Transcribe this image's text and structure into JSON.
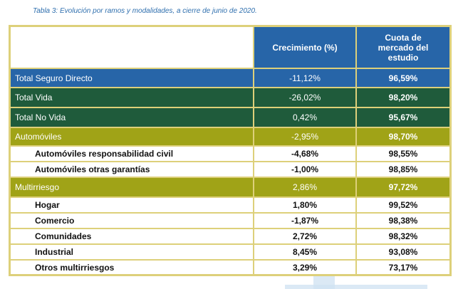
{
  "caption": "Tabla 3: Evolución por ramos y modalidades,  a cierre de junio de 2020.",
  "header": {
    "col2": "Crecimiento (%)",
    "col3": "Cuota de mercado del estudio"
  },
  "rows": [
    {
      "label": "Total Seguro Directo",
      "growth": "-11,12%",
      "share": "96,59%"
    },
    {
      "label": "Total Vida",
      "growth": "-26,02%",
      "share": "98,20%"
    },
    {
      "label": "Total No Vida",
      "growth": "0,42%",
      "share": "95,67%"
    },
    {
      "label": "Automóviles",
      "growth": "-2,95%",
      "share": "98,70%"
    },
    {
      "label": "Automóviles responsabilidad civil",
      "growth": "-4,68%",
      "share": "98,55%"
    },
    {
      "label": "Automóviles otras garantías",
      "growth": "-1,00%",
      "share": "98,85%"
    },
    {
      "label": "Multirriesgo",
      "growth": "2,86%",
      "share": "97,72%"
    },
    {
      "label": "Hogar",
      "growth": "1,80%",
      "share": "99,52%"
    },
    {
      "label": "Comercio",
      "growth": "-1,87%",
      "share": "98,38%"
    },
    {
      "label": "Comunidades",
      "growth": "2,72%",
      "share": "98,32%"
    },
    {
      "label": "Industrial",
      "growth": "8,45%",
      "share": "93,08%"
    },
    {
      "label": "Otros multirriesgos",
      "growth": "3,29%",
      "share": "73,17%"
    }
  ],
  "colors": {
    "blue": "#2765a8",
    "green": "#1f5b3b",
    "olive": "#a0a317",
    "border": "#ddd07a"
  }
}
